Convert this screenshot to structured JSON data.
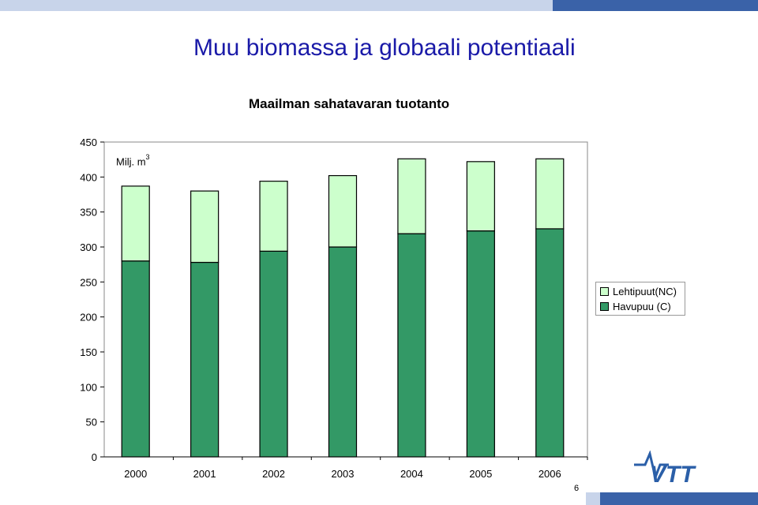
{
  "slide": {
    "title": "Muu biomassa ja globaali potentiaali",
    "page_number": "6"
  },
  "logo": {
    "text": "VTT",
    "color": "#2b5fa8"
  },
  "colors": {
    "accent": "#1a1aa8",
    "band_blue": "#3a62a8",
    "band_light": "#c8d4ea"
  },
  "chart_data": {
    "type": "bar",
    "stacked": true,
    "title": "Maailman sahatavaran tuotanto",
    "unit_label": "Milj. m",
    "unit_superscript": "3",
    "categories": [
      "2000",
      "2001",
      "2002",
      "2003",
      "2004",
      "2005",
      "2006"
    ],
    "series": [
      {
        "name": "Havupuu (C)",
        "color": "#339966",
        "values": [
          280,
          278,
          294,
          300,
          319,
          323,
          326
        ]
      },
      {
        "name": "Lehtipuut(NC)",
        "color": "#ccffcc",
        "values": [
          107,
          102,
          100,
          102,
          107,
          99,
          100
        ]
      }
    ],
    "legend_order": [
      "Lehtipuut(NC)",
      "Havupuu (C)"
    ],
    "legend_position": "right",
    "ylim": [
      0,
      450
    ],
    "yticks": [
      0,
      50,
      100,
      150,
      200,
      250,
      300,
      350,
      400,
      450
    ],
    "grid": false
  }
}
